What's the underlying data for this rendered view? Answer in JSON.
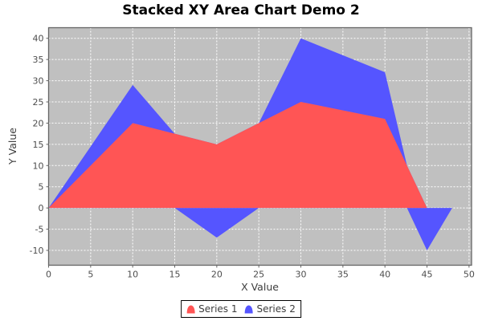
{
  "title": "Stacked XY Area Chart Demo 2",
  "chart_data": {
    "type": "area",
    "stacked": true,
    "title": "Stacked XY Area Chart Demo 2",
    "xlabel": "X Value",
    "ylabel": "Y Value",
    "x": [
      0,
      10,
      15,
      20,
      25,
      30,
      40,
      45,
      48
    ],
    "series": [
      {
        "name": "Series 1",
        "color": "#FF5555",
        "values": [
          0,
          20,
          17.5,
          15,
          20,
          25,
          21,
          0,
          0
        ]
      },
      {
        "name": "Series 2",
        "color": "#5555FF",
        "values": [
          0,
          9,
          0,
          -7,
          0,
          15,
          11,
          -10,
          0
        ]
      }
    ],
    "stacked_totals": [
      0,
      29,
      17.5,
      8,
      20,
      40,
      32,
      -10,
      0
    ],
    "x_ticks": [
      0,
      5,
      10,
      15,
      20,
      25,
      30,
      35,
      40,
      45,
      50
    ],
    "y_ticks": [
      -10,
      -5,
      0,
      5,
      10,
      15,
      20,
      25,
      30,
      35,
      40
    ],
    "xlim": [
      0,
      50.3
    ],
    "ylim": [
      -13.5,
      42.5
    ],
    "grid": true,
    "legend_position": "bottom",
    "plot_bg": "#C0C0C0",
    "grid_color": "#FFFFFF",
    "outline_color": "#666666",
    "tick_color": "#4d4d4d"
  },
  "legend": {
    "items": [
      {
        "label": "Series 1",
        "color": "#FF5555"
      },
      {
        "label": "Series 2",
        "color": "#5555FF"
      }
    ]
  }
}
